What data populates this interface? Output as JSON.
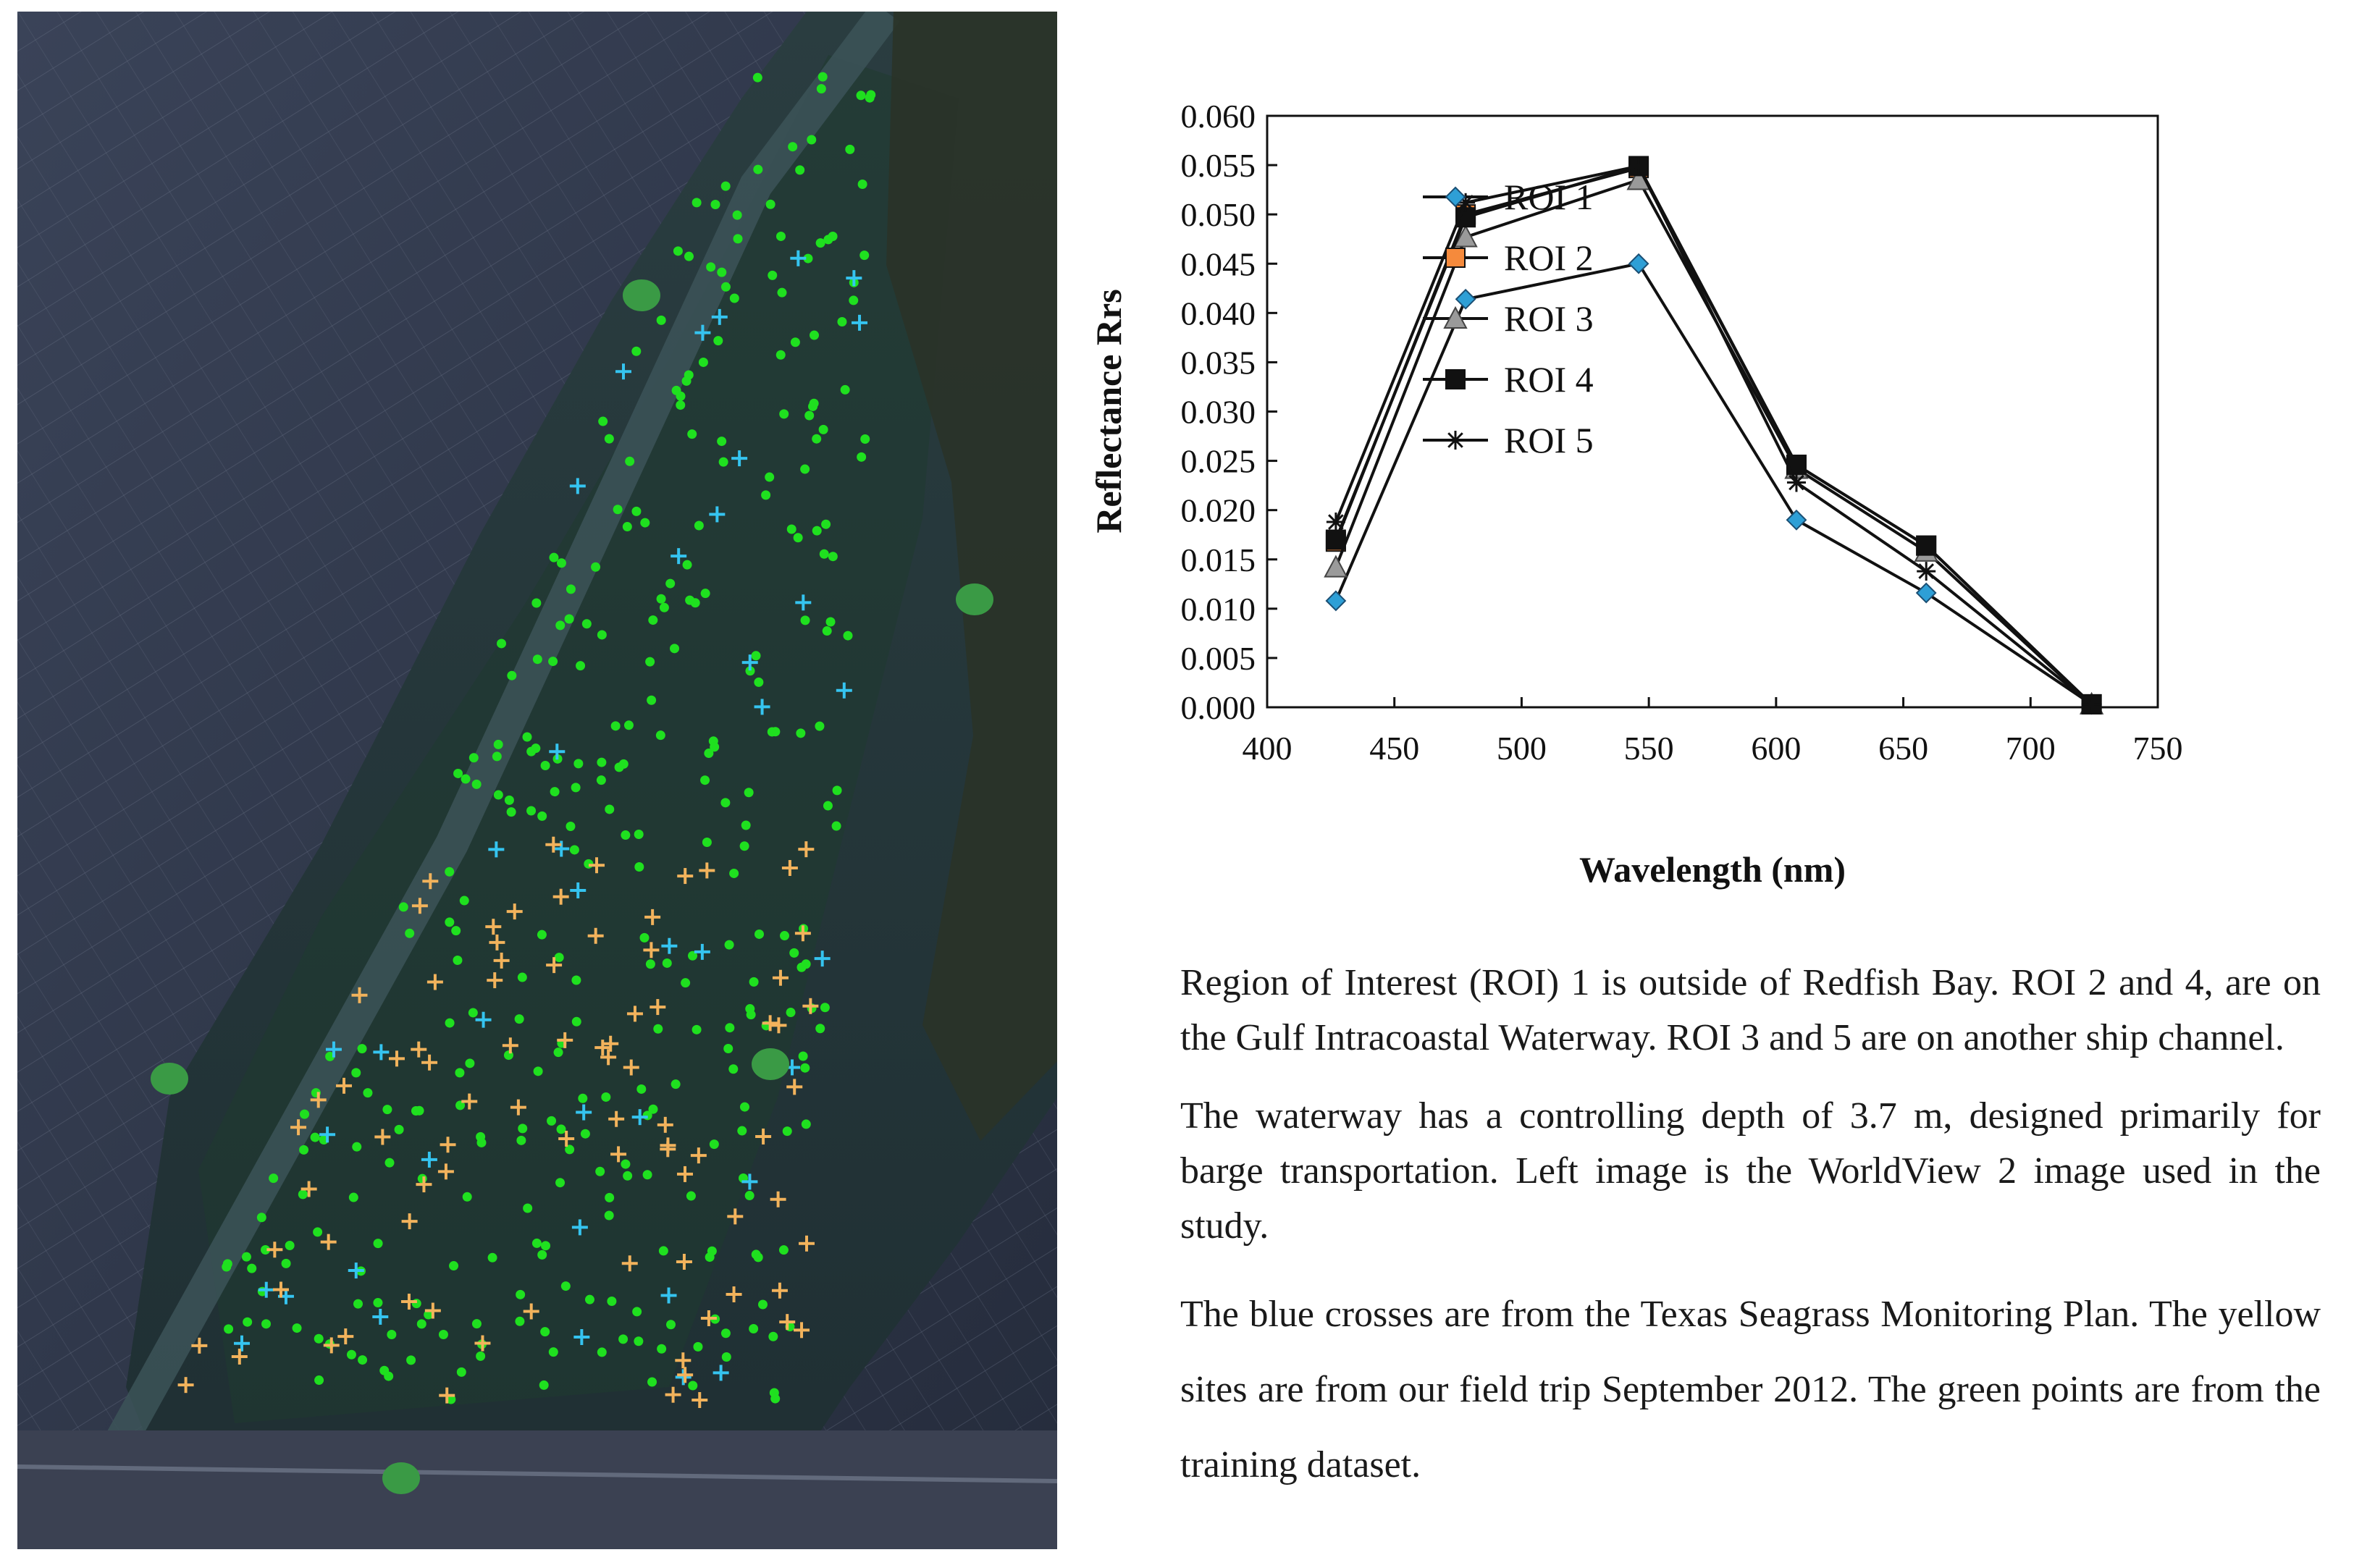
{
  "map": {
    "legend_colors": {
      "water": "#25363a",
      "land": "#2b3447",
      "training_points": "#1fe01f",
      "seagrass_monitoring_sites": "#35c4f0",
      "field_trip_sites": "#f2b35c",
      "roi_markers": "#3a9a45"
    }
  },
  "chart_data": {
    "type": "line",
    "title": "",
    "xlabel": "Wavelength (nm)",
    "ylabel": "Reflectance Rrs",
    "xlim": [
      400,
      750
    ],
    "ylim": [
      0.0,
      0.06
    ],
    "xticks": [
      "400",
      "450",
      "500",
      "550",
      "600",
      "650",
      "700",
      "750"
    ],
    "yticks": [
      "0.000",
      "0.005",
      "0.010",
      "0.015",
      "0.020",
      "0.025",
      "0.030",
      "0.035",
      "0.040",
      "0.045",
      "0.050",
      "0.055",
      "0.060"
    ],
    "grid": false,
    "legend_position": "center-left",
    "x": [
      427,
      478,
      546,
      608,
      659,
      724
    ],
    "series": [
      {
        "name": "ROI 1",
        "marker": "diamond",
        "color": "#2e9fd6",
        "values": [
          0.0108,
          0.0414,
          0.045,
          0.019,
          0.0116,
          0.0003
        ]
      },
      {
        "name": "ROI 2",
        "marker": "square",
        "color": "#f58a3c",
        "values": [
          0.0168,
          0.05,
          0.0547,
          0.0246,
          0.0164,
          0.0003
        ]
      },
      {
        "name": "ROI 3",
        "marker": "triangle",
        "color": "#9a9a9a",
        "values": [
          0.0142,
          0.0477,
          0.0535,
          0.0242,
          0.0158,
          0.0003
        ]
      },
      {
        "name": "ROI 4",
        "marker": "square",
        "color": "#111111",
        "values": [
          0.017,
          0.0497,
          0.0549,
          0.0246,
          0.0164,
          0.0003
        ]
      },
      {
        "name": "ROI 5",
        "marker": "star",
        "color": "#111111",
        "values": [
          0.0188,
          0.0512,
          0.0549,
          0.0228,
          0.0138,
          0.0003
        ]
      }
    ]
  },
  "notes": [
    "Region of Interest (ROI) 1 is outside of Redfish Bay. ROI 2 and 4, are on the Gulf Intracoastal Waterway. ROI 3 and 5 are on another ship channel.",
    "The waterway has a controlling depth of 3.7 m, designed primarily for barge transportation. Left image is the WorldView 2 image used in the study.",
    "The blue crosses are from the Texas Seagrass Monitoring Plan. The yellow sites are from our field trip September 2012. The green points are from the training dataset."
  ]
}
